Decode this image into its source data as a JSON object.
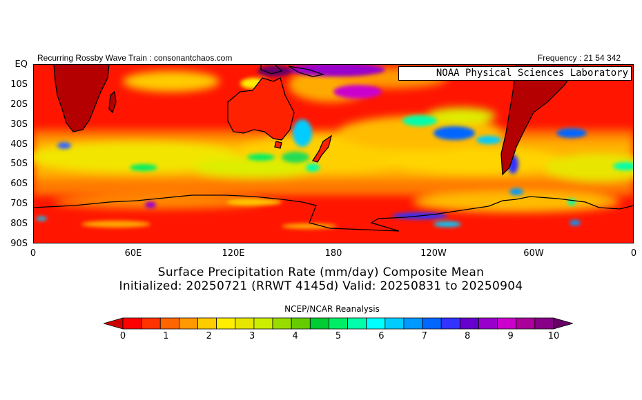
{
  "header": {
    "left_text": "Recurring Rossby Wave Train : consonantchaos.com",
    "right_text": "Frequency : 21 54 342"
  },
  "overlay": {
    "label": "NOAA Physical Sciences Laboratory"
  },
  "map": {
    "projection": "cylindrical",
    "lat_range": [
      "EQ",
      "90S"
    ],
    "lon_range": [
      "0",
      "0"
    ],
    "lat_labels": [
      "EQ",
      "10S",
      "20S",
      "30S",
      "40S",
      "50S",
      "60S",
      "70S",
      "80S",
      "90S"
    ],
    "lon_labels": [
      "0",
      "60E",
      "120E",
      "180",
      "120W",
      "60W",
      "0"
    ],
    "field": "precipitation rate",
    "colors": {
      "background_dry": "#ff0000",
      "landmass_dark": "#b40000",
      "coastline": "#000000"
    }
  },
  "title": {
    "line1": "Surface Precipitation Rate (mm/day) Composite Mean",
    "line2": "Initialized: 20250721 (RRWT 4145d) Valid: 20250831 to 20250904"
  },
  "source": "NCEP/NCAR Reanalysis",
  "colorbar": {
    "labels": [
      "0",
      "1",
      "2",
      "3",
      "4",
      "5",
      "6",
      "7",
      "8",
      "9",
      "10"
    ],
    "colors": [
      "#cc0000",
      "#ff0000",
      "#ff3300",
      "#ff6600",
      "#ff9900",
      "#ffcc00",
      "#ffee00",
      "#e6e600",
      "#ccee00",
      "#99dd00",
      "#66cc00",
      "#00cc33",
      "#00ee66",
      "#00ffaa",
      "#00ffff",
      "#00ccff",
      "#0099ff",
      "#0066ff",
      "#3333ff",
      "#6600cc",
      "#9900cc",
      "#cc00cc",
      "#aa0099",
      "#880088",
      "#660066"
    ]
  }
}
